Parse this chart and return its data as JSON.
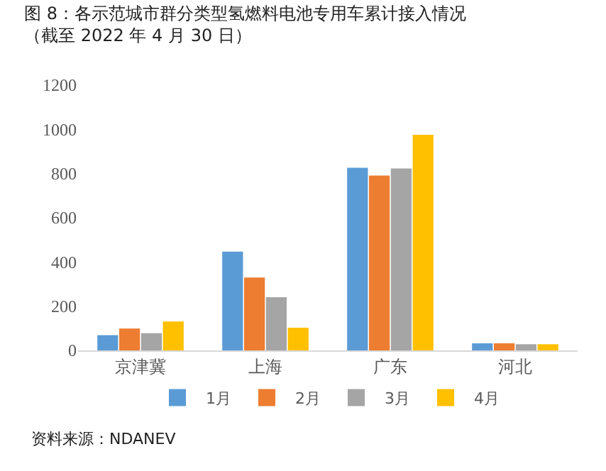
{
  "chart_data": {
    "type": "bar",
    "title": "图 8：各示范城市群分类型氢燃料电池专用车累计接入情况（截至 2022 年 4 月 30 日）",
    "categories": [
      "京津冀",
      "上海",
      "广东",
      "河北"
    ],
    "series": [
      {
        "name": "1月",
        "color": "#5b9bd5",
        "values": [
          69,
          447,
          826,
          32
        ]
      },
      {
        "name": "2月",
        "color": "#ed7d31",
        "values": [
          99,
          330,
          791,
          32
        ]
      },
      {
        "name": "3月",
        "color": "#a5a5a5",
        "values": [
          78,
          241,
          823,
          28
        ]
      },
      {
        "name": "4月",
        "color": "#ffc000",
        "values": [
          131,
          103,
          975,
          28
        ]
      }
    ],
    "ylim": [
      0,
      1200
    ],
    "yticks": [
      0,
      200,
      400,
      600,
      800,
      1000,
      1200
    ],
    "grid": false,
    "legend": "bottom",
    "annotations": [
      "资料来源：NDANEV"
    ]
  }
}
